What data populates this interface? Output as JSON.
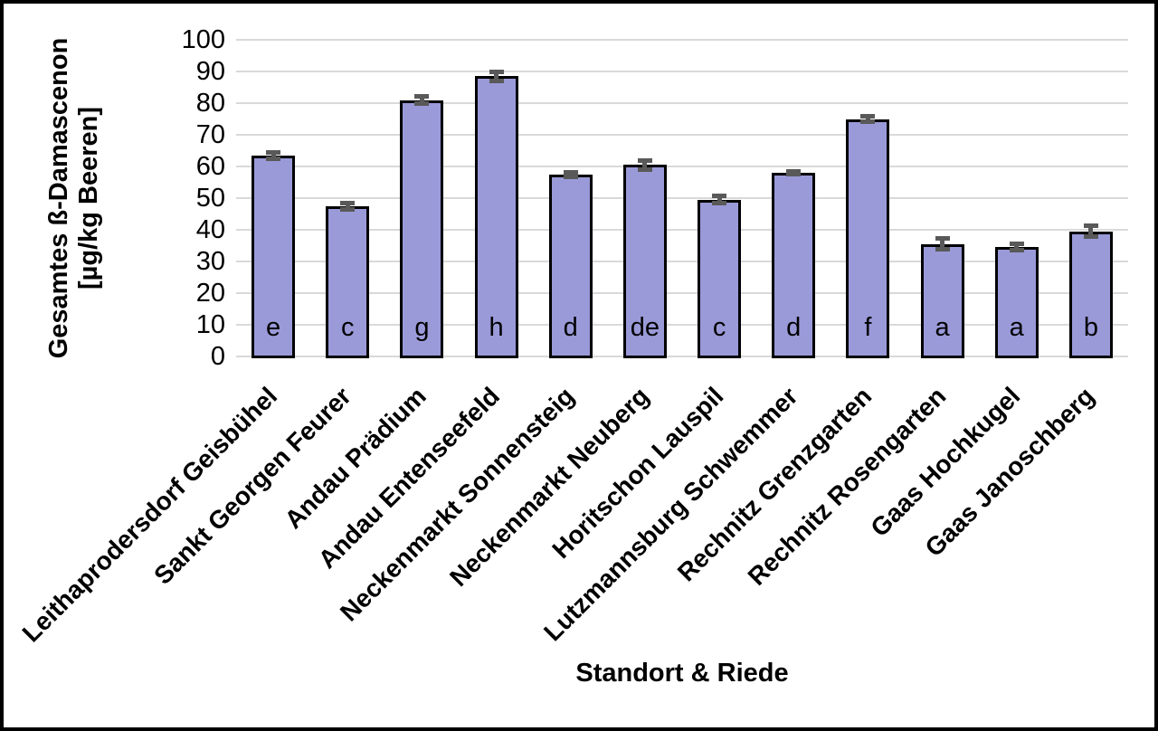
{
  "chart_data": {
    "type": "bar",
    "title": "",
    "xlabel": "Standort & Riede",
    "ylabel": "Gesamtes ß-Damascenon [µg/kg Beeren]",
    "ylabel_lines": [
      "Gesamtes ß-Damascenon",
      "[µg/kg Beeren]"
    ],
    "ylim": [
      0,
      100
    ],
    "ytick_step": 10,
    "ytick_labels": [
      "0",
      "10",
      "20",
      "30",
      "40",
      "50",
      "60",
      "70",
      "80",
      "90",
      "100"
    ],
    "grid": true,
    "legend": "none",
    "categories": [
      "Leithaprodersdorf Geisbühel",
      "Sankt Georgen Feurer",
      "Andau Prädium",
      "Andau Entenseefeld",
      "Neckenmarkt Sonnensteig",
      "Neckenmarkt Neuberg",
      "Horitschon Lauspil",
      "Lutzmannsburg Schwemmer",
      "Rechnitz Grenzgarten",
      "Rechnitz Rosengarten",
      "Gaas Hochkugel",
      "Gaas Janoschberg"
    ],
    "values": [
      63.5,
      47.5,
      81,
      88.5,
      57.5,
      60.5,
      49.5,
      58,
      75,
      35.5,
      34.5,
      39.5
    ],
    "error_bars": [
      1.2,
      1.2,
      1.3,
      1.5,
      0.8,
      1.5,
      1.3,
      0.6,
      1.0,
      1.8,
      1.2,
      1.8
    ],
    "significance_letters": [
      "e",
      "c",
      "g",
      "h",
      "d",
      "de",
      "c",
      "d",
      "f",
      "a",
      "a",
      "b"
    ],
    "colors": {
      "bar_fill": "#9A9AD9",
      "bar_border": "#000000",
      "error_bar": "#595959",
      "gridline": "#D9D9D9",
      "text": "#000000",
      "figure_border": "#000000",
      "background": "#FFFFFF"
    }
  }
}
